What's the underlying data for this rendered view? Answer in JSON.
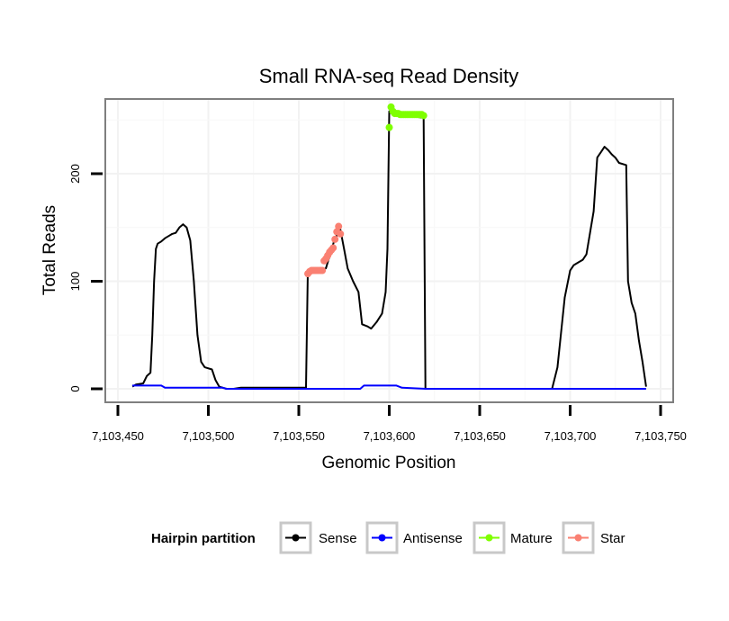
{
  "chart_data": {
    "type": "line",
    "title": "Small RNA-seq Read Density",
    "xlabel": "Genomic Position",
    "ylabel": "Total Reads",
    "xlim": [
      7103450,
      7103752
    ],
    "ylim": [
      -12,
      266
    ],
    "x_ticks": [
      7103450,
      7103500,
      7103550,
      7103600,
      7103650,
      7103700,
      7103750
    ],
    "x_tick_labels": [
      "7,103,450",
      "7,103,500",
      "7,103,550",
      "7,103,600",
      "7,103,650",
      "7,103,700",
      "7,103,750"
    ],
    "y_ticks": [
      0,
      100,
      200
    ],
    "y_tick_labels": [
      "0",
      "100",
      "200"
    ],
    "grid": true,
    "legend": {
      "title": "Hairpin partition",
      "placement": "bottom",
      "entries": [
        "Sense",
        "Antisense",
        "Mature",
        "Star"
      ]
    },
    "series": [
      {
        "name": "Sense",
        "color": "#000000",
        "marker": "line",
        "points": [
          [
            7103458,
            2
          ],
          [
            7103460,
            4
          ],
          [
            7103464,
            5
          ],
          [
            7103466,
            12
          ],
          [
            7103468,
            15
          ],
          [
            7103469,
            50
          ],
          [
            7103470,
            100
          ],
          [
            7103471,
            130
          ],
          [
            7103472,
            135
          ],
          [
            7103474,
            137
          ],
          [
            7103476,
            140
          ],
          [
            7103478,
            142
          ],
          [
            7103480,
            144
          ],
          [
            7103482,
            145
          ],
          [
            7103484,
            150
          ],
          [
            7103486,
            153
          ],
          [
            7103488,
            150
          ],
          [
            7103490,
            138
          ],
          [
            7103492,
            100
          ],
          [
            7103494,
            50
          ],
          [
            7103496,
            25
          ],
          [
            7103498,
            20
          ],
          [
            7103502,
            18
          ],
          [
            7103504,
            8
          ],
          [
            7103506,
            2
          ],
          [
            7103508,
            1
          ],
          [
            7103510,
            0
          ],
          [
            7103514,
            0
          ],
          [
            7103518,
            1
          ],
          [
            7103530,
            1
          ],
          [
            7103542,
            1
          ],
          [
            7103554,
            1
          ],
          [
            7103555,
            108
          ],
          [
            7103560,
            110
          ],
          [
            7103565,
            112
          ],
          [
            7103570,
            140
          ],
          [
            7103573,
            148
          ],
          [
            7103575,
            130
          ],
          [
            7103577,
            112
          ],
          [
            7103580,
            100
          ],
          [
            7103583,
            90
          ],
          [
            7103585,
            60
          ],
          [
            7103588,
            58
          ],
          [
            7103590,
            56
          ],
          [
            7103593,
            62
          ],
          [
            7103596,
            70
          ],
          [
            7103598,
            90
          ],
          [
            7103599,
            130
          ],
          [
            7103600,
            258
          ],
          [
            7103605,
            254
          ],
          [
            7103610,
            253
          ],
          [
            7103615,
            253
          ],
          [
            7103619,
            252
          ],
          [
            7103620,
            0
          ],
          [
            7103630,
            0
          ],
          [
            7103650,
            0
          ],
          [
            7103670,
            0
          ],
          [
            7103690,
            0
          ],
          [
            7103693,
            20
          ],
          [
            7103697,
            85
          ],
          [
            7103700,
            110
          ],
          [
            7103702,
            115
          ],
          [
            7103705,
            118
          ],
          [
            7103707,
            120
          ],
          [
            7103709,
            125
          ],
          [
            7103711,
            145
          ],
          [
            7103713,
            165
          ],
          [
            7103715,
            215
          ],
          [
            7103717,
            220
          ],
          [
            7103719,
            225
          ],
          [
            7103721,
            222
          ],
          [
            7103723,
            218
          ],
          [
            7103725,
            215
          ],
          [
            7103727,
            210
          ],
          [
            7103731,
            208
          ],
          [
            7103732,
            100
          ],
          [
            7103734,
            80
          ],
          [
            7103736,
            70
          ],
          [
            7103738,
            45
          ],
          [
            7103740,
            25
          ],
          [
            7103742,
            2
          ]
        ]
      },
      {
        "name": "Antisense",
        "color": "#0000ff",
        "marker": "line",
        "points": [
          [
            7103458,
            3
          ],
          [
            7103474,
            3
          ],
          [
            7103476,
            1
          ],
          [
            7103508,
            1
          ],
          [
            7103510,
            0
          ],
          [
            7103584,
            0
          ],
          [
            7103586,
            3
          ],
          [
            7103604,
            3
          ],
          [
            7103607,
            1
          ],
          [
            7103620,
            0
          ],
          [
            7103742,
            0
          ]
        ]
      },
      {
        "name": "Mature",
        "color": "#7fff00",
        "marker": "point",
        "points": [
          [
            7103600,
            243
          ],
          [
            7103601,
            262
          ],
          [
            7103602,
            258
          ],
          [
            7103603,
            256
          ],
          [
            7103604,
            256
          ],
          [
            7103605,
            256
          ],
          [
            7103606,
            255
          ],
          [
            7103607,
            255
          ],
          [
            7103608,
            255
          ],
          [
            7103609,
            255
          ],
          [
            7103610,
            255
          ],
          [
            7103611,
            255
          ],
          [
            7103612,
            255
          ],
          [
            7103613,
            255
          ],
          [
            7103614,
            255
          ],
          [
            7103615,
            255
          ],
          [
            7103616,
            255
          ],
          [
            7103617,
            255
          ],
          [
            7103618,
            255
          ],
          [
            7103619,
            254
          ]
        ]
      },
      {
        "name": "Star",
        "color": "#fa8072",
        "marker": "point",
        "points": [
          [
            7103555,
            107
          ],
          [
            7103556,
            109
          ],
          [
            7103557,
            110
          ],
          [
            7103558,
            110
          ],
          [
            7103559,
            110
          ],
          [
            7103560,
            110
          ],
          [
            7103561,
            110
          ],
          [
            7103562,
            110
          ],
          [
            7103563,
            110
          ],
          [
            7103564,
            119
          ],
          [
            7103565,
            121
          ],
          [
            7103566,
            124
          ],
          [
            7103567,
            127
          ],
          [
            7103568,
            129
          ],
          [
            7103569,
            131
          ],
          [
            7103570,
            139
          ],
          [
            7103571,
            146
          ],
          [
            7103572,
            151
          ],
          [
            7103573,
            144
          ]
        ]
      }
    ]
  }
}
